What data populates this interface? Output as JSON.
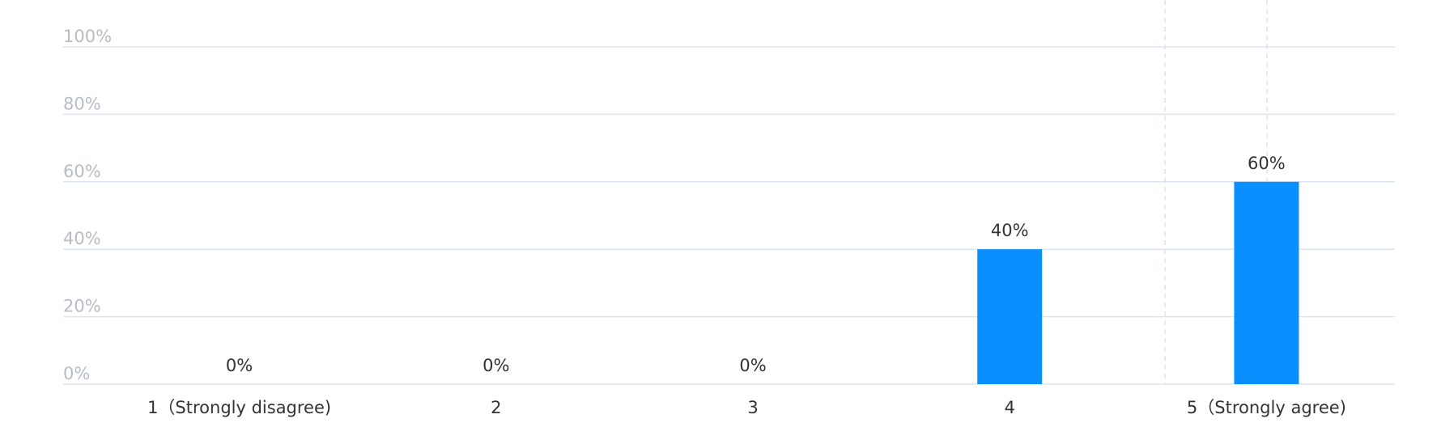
{
  "chart_data": {
    "type": "bar",
    "categories": [
      "1（Strongly disagree)",
      "2",
      "3",
      "4",
      "5（Strongly agree)"
    ],
    "values": [
      0,
      0,
      0,
      40,
      60
    ],
    "value_labels": [
      "0%",
      "0%",
      "0%",
      "40%",
      "60%"
    ],
    "color": "#0a8fff",
    "ylim": [
      0,
      100
    ],
    "yticks": [
      {
        "value": 0,
        "label": "0%"
      },
      {
        "value": 20,
        "label": "20%"
      },
      {
        "value": 40,
        "label": "40%"
      },
      {
        "value": 60,
        "label": "60%"
      },
      {
        "value": 80,
        "label": "80%"
      },
      {
        "value": 100,
        "label": "100%"
      }
    ],
    "grid": true
  }
}
